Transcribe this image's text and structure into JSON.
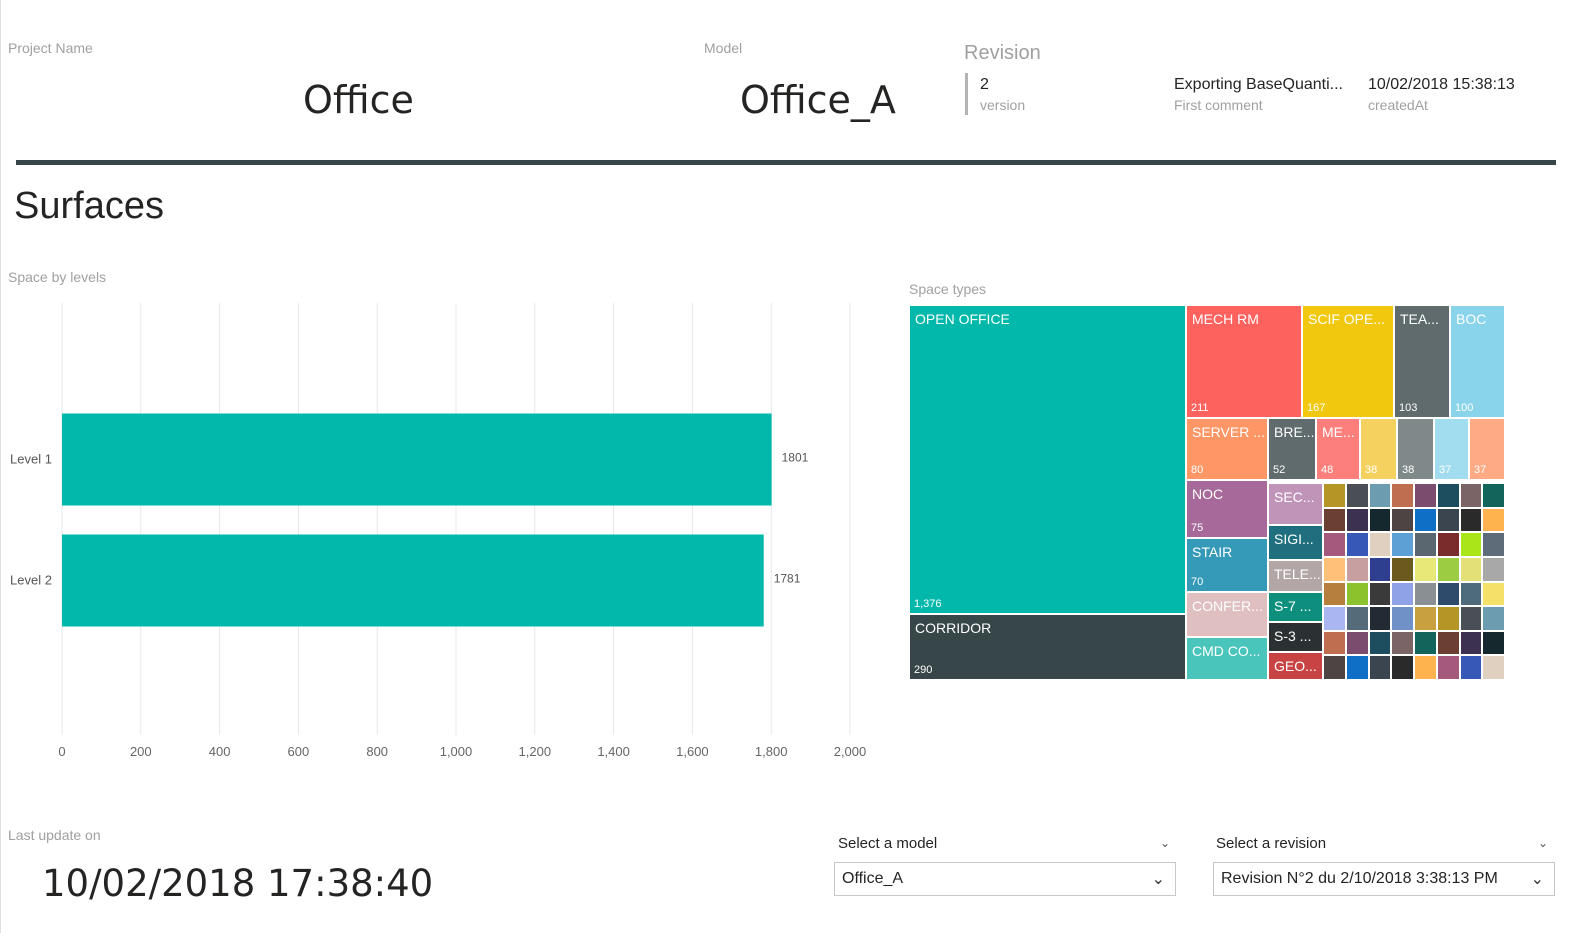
{
  "header": {
    "project_label": "Project Name",
    "project_value": "Office",
    "model_label": "Model",
    "model_value": "Office_A",
    "revision_label": "Revision",
    "version_value": "2",
    "version_label": "version",
    "comment_value": "Exporting BaseQuanti...",
    "comment_label": "First comment",
    "created_value": "10/02/2018 15:38:13",
    "created_label": "createdAt"
  },
  "section_title": "Surfaces",
  "footer": {
    "last_update_label": "Last update on",
    "last_update_value": "10/02/2018 17:38:40",
    "model_slicer_label": "Select a model",
    "model_slicer_value": "Office_A",
    "revision_slicer_label": "Select a revision",
    "revision_slicer_value": "Revision N°2 du 2/10/2018 3:38:13 PM"
  },
  "colors": {
    "teal": "#01B8AA",
    "dark": "#374649",
    "red": "#FD625E",
    "yellow": "#F2C80F",
    "gray": "#5F6B6D",
    "light_blue": "#8AD4EB",
    "orange": "#FE9666",
    "purple": "#A66999"
  },
  "chart_data": [
    {
      "type": "bar",
      "orientation": "horizontal",
      "title": "Space by levels",
      "categories": [
        "Level 1",
        "Level 2"
      ],
      "values": [
        1801,
        1781
      ],
      "data_labels": [
        "1801",
        "1781"
      ],
      "xlim": [
        0,
        2000
      ],
      "xticks": [
        0,
        200,
        400,
        600,
        800,
        1000,
        1200,
        1400,
        1600,
        1800,
        2000
      ],
      "xtick_labels": [
        "0",
        "200",
        "400",
        "600",
        "800",
        "1,000",
        "1,200",
        "1,400",
        "1,600",
        "1,800",
        "2,000"
      ],
      "grid": true,
      "color": "#01B8AA"
    },
    {
      "type": "treemap",
      "title": "Space types",
      "items": [
        {
          "label": "OPEN OFFICE",
          "value": 1376,
          "value_label": "1,376",
          "color": "#01B8AA"
        },
        {
          "label": "CORRIDOR",
          "value": 290,
          "value_label": "290",
          "color": "#374649"
        },
        {
          "label": "MECH RM",
          "value": 211,
          "value_label": "211",
          "color": "#FD625E"
        },
        {
          "label": "SCIF OPE...",
          "value": 167,
          "value_label": "167",
          "color": "#F2C80F"
        },
        {
          "label": "TEA...",
          "value": 103,
          "value_label": "103",
          "color": "#5F6B6D"
        },
        {
          "label": "BOC",
          "value": 100,
          "value_label": "100",
          "color": "#8AD4EB"
        },
        {
          "label": "SERVER ...",
          "value": 80,
          "value_label": "80",
          "color": "#FE9666"
        },
        {
          "label": "BRE...",
          "value": 52,
          "value_label": "52",
          "color": "#5F6B6D"
        },
        {
          "label": "ME...",
          "value": 48,
          "value_label": "48",
          "color": "#FD7F7C"
        },
        {
          "label": "",
          "value": 38,
          "value_label": "38",
          "color": "#F5D25F"
        },
        {
          "label": "",
          "value": 38,
          "value_label": "38",
          "color": "#7F898A"
        },
        {
          "label": "",
          "value": 37,
          "value_label": "37",
          "color": "#A1DDEF"
        },
        {
          "label": "",
          "value": 37,
          "value_label": "37",
          "color": "#FEAB85"
        },
        {
          "label": "NOC",
          "value": 75,
          "value_label": "75",
          "color": "#A66999"
        },
        {
          "label": "STAIR",
          "value": 70,
          "value_label": "70",
          "color": "#3599B8"
        },
        {
          "label": "CONFER...",
          "value": null,
          "value_label": "",
          "color": "#DFBFBF"
        },
        {
          "label": "CMD CO...",
          "value": null,
          "value_label": "",
          "color": "#4AC5BB"
        },
        {
          "label": "SEC...",
          "value": null,
          "value_label": "",
          "color": "#C094B8"
        },
        {
          "label": "SIGI...",
          "value": null,
          "value_label": "",
          "color": "#1F6F7F"
        },
        {
          "label": "TELE...",
          "value": null,
          "value_label": "",
          "color": "#B3A6A6"
        },
        {
          "label": "S-7 ...",
          "value": null,
          "value_label": "",
          "color": "#0E8F7E"
        },
        {
          "label": "S-3 ...",
          "value": null,
          "value_label": "",
          "color": "#2B3132"
        },
        {
          "label": "GEO...",
          "value": null,
          "value_label": "",
          "color": "#C84444"
        }
      ]
    }
  ]
}
